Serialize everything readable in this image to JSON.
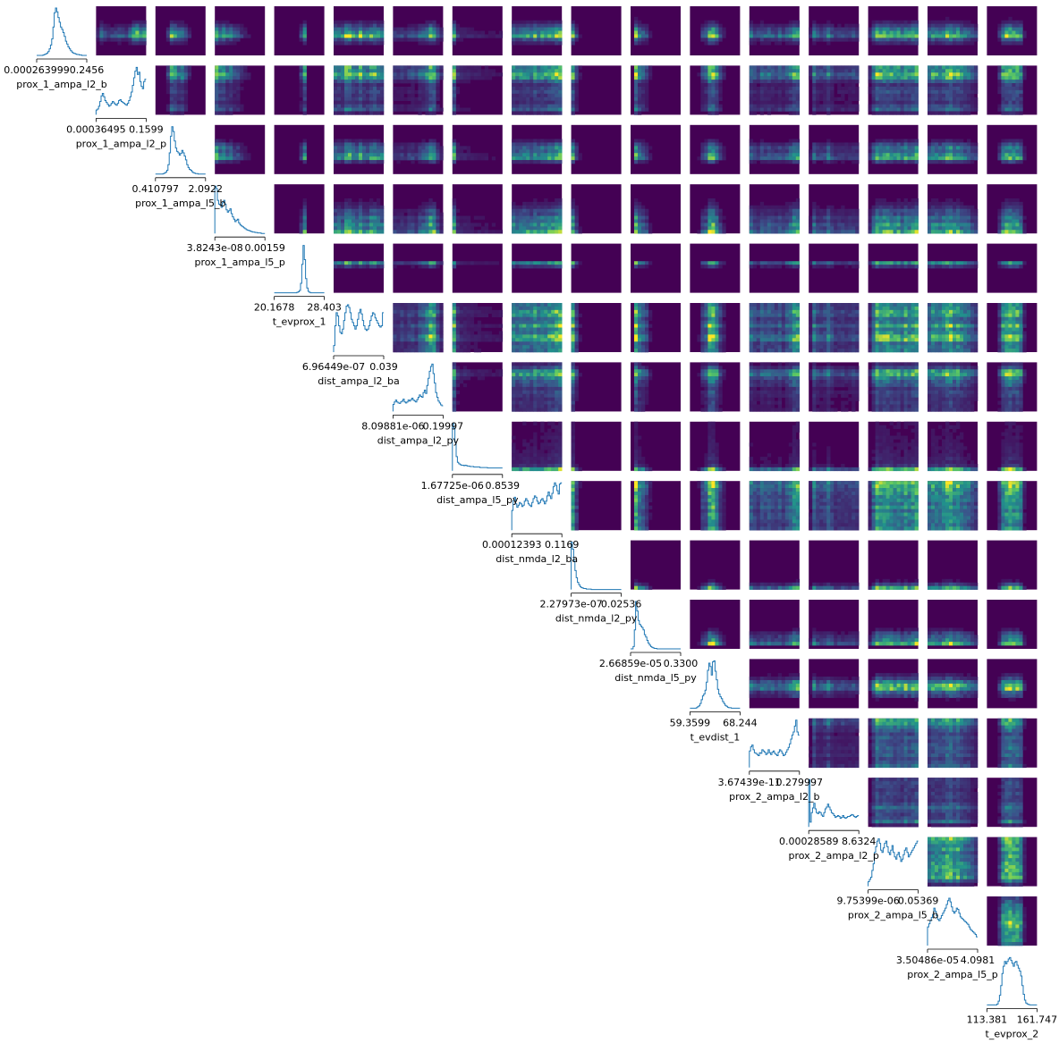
{
  "chart_data": {
    "type": "pairplot",
    "description_kind": "corner pairplot: 1D histograms on the diagonal, 2D density heatmaps above the diagonal",
    "colors": {
      "histogram_line": "#1f77b4",
      "heatmap_low": "#440154",
      "heatmap_mid": "#21918c",
      "heatmap_high": "#fde725",
      "axis": "#000000",
      "background": "#ffffff"
    },
    "variables": [
      {
        "name": "prox_1_ampa_l2_b",
        "tick_min": "0.000263999",
        "tick_max": "0.2456"
      },
      {
        "name": "prox_1_ampa_l2_p",
        "tick_min": "0.00036495",
        "tick_max": "0.1599"
      },
      {
        "name": "prox_1_ampa_l5_b",
        "tick_min": "0.410797",
        "tick_max": "2.0922"
      },
      {
        "name": "prox_1_ampa_l5_p",
        "tick_min": "3.8243e-08",
        "tick_max": "0.00159"
      },
      {
        "name": "t_evprox_1",
        "tick_min": "20.1678",
        "tick_max": "28.403"
      },
      {
        "name": "dist_ampa_l2_ba",
        "tick_min": "6.96449e-07",
        "tick_max": "0.039"
      },
      {
        "name": "dist_ampa_l2_py",
        "tick_min": "8.09881e-06",
        "tick_max": "0.19997"
      },
      {
        "name": "dist_ampa_l5_py",
        "tick_min": "1.67725e-06",
        "tick_max": "0.8539"
      },
      {
        "name": "dist_nmda_l2_ba",
        "tick_min": "0.00012393",
        "tick_max": "0.1169"
      },
      {
        "name": "dist_nmda_l2_py",
        "tick_min": "2.27973e-07",
        "tick_max": "0.02536"
      },
      {
        "name": "dist_nmda_l5_py",
        "tick_min": "2.66859e-05",
        "tick_max": "0.3300"
      },
      {
        "name": "t_evdist_1",
        "tick_min": "59.3599",
        "tick_max": "68.244"
      },
      {
        "name": "prox_2_ampa_l2_b",
        "tick_min": "3.67439e-11",
        "tick_max": "0.279997"
      },
      {
        "name": "prox_2_ampa_l2_p",
        "tick_min": "0.00028589",
        "tick_max": "8.6324"
      },
      {
        "name": "prox_2_ampa_l5_b",
        "tick_min": "9.75399e-06",
        "tick_max": "0.05369"
      },
      {
        "name": "prox_2_ampa_l5_p",
        "tick_min": "3.50486e-05",
        "tick_max": "4.0981"
      },
      {
        "name": "t_evprox_2",
        "tick_min": "113.381",
        "tick_max": "161.747"
      }
    ],
    "histograms": [
      [
        0,
        0,
        0,
        0,
        0,
        1,
        2,
        3,
        5,
        8,
        14,
        22,
        35,
        60,
        90,
        100,
        92,
        80,
        70,
        60,
        55,
        48,
        40,
        30,
        24,
        18,
        14,
        10,
        7,
        5,
        4,
        3,
        2,
        2,
        1,
        1,
        0,
        0,
        0,
        0
      ],
      [
        10,
        12,
        18,
        28,
        40,
        45,
        38,
        30,
        26,
        22,
        18,
        20,
        24,
        28,
        25,
        22,
        20,
        24,
        30,
        32,
        28,
        26,
        24,
        22,
        20,
        24,
        30,
        38,
        48,
        62,
        78,
        92,
        100,
        85,
        90,
        70,
        60,
        55,
        70,
        75
      ],
      [
        0,
        0,
        0,
        0,
        0,
        0,
        1,
        2,
        4,
        8,
        20,
        45,
        80,
        100,
        90,
        70,
        55,
        48,
        45,
        40,
        44,
        50,
        45,
        38,
        30,
        20,
        14,
        10,
        8,
        5,
        3,
        2,
        1,
        1,
        0,
        0,
        0,
        0,
        0,
        0
      ],
      [
        100,
        95,
        70,
        62,
        60,
        55,
        65,
        70,
        62,
        50,
        45,
        48,
        52,
        42,
        35,
        30,
        25,
        28,
        30,
        22,
        18,
        16,
        14,
        12,
        10,
        8,
        7,
        6,
        5,
        4,
        3,
        3,
        2,
        2,
        1,
        1,
        1,
        0,
        0,
        0
      ],
      [
        0,
        0,
        0,
        0,
        0,
        0,
        0,
        0,
        0,
        0,
        0,
        0,
        0,
        0,
        0,
        0,
        0,
        0,
        1,
        2,
        5,
        20,
        60,
        100,
        70,
        30,
        10,
        3,
        1,
        0,
        0,
        0,
        0,
        0,
        0,
        0,
        0,
        0,
        0,
        0
      ],
      [
        10,
        40,
        60,
        55,
        40,
        30,
        28,
        35,
        48,
        60,
        70,
        72,
        68,
        60,
        50,
        45,
        40,
        35,
        40,
        50,
        60,
        65,
        58,
        48,
        40,
        35,
        33,
        35,
        40,
        48,
        55,
        60,
        58,
        52,
        48,
        44,
        40,
        38,
        40,
        60
      ],
      [
        15,
        20,
        24,
        20,
        18,
        17,
        20,
        22,
        26,
        20,
        18,
        20,
        24,
        22,
        25,
        28,
        24,
        22,
        20,
        25,
        30,
        35,
        32,
        30,
        40,
        45,
        38,
        55,
        70,
        85,
        95,
        100,
        80,
        60,
        40,
        30,
        22,
        18,
        14,
        12
      ],
      [
        100,
        90,
        60,
        30,
        18,
        15,
        13,
        12,
        12,
        11,
        12,
        11,
        10,
        10,
        9,
        9,
        9,
        8,
        8,
        8,
        8,
        8,
        7,
        7,
        7,
        7,
        7,
        7,
        6,
        6,
        6,
        6,
        6,
        6,
        6,
        6,
        6,
        6,
        6,
        6
      ],
      [
        30,
        45,
        50,
        40,
        35,
        38,
        42,
        40,
        36,
        38,
        44,
        48,
        45,
        40,
        38,
        36,
        42,
        48,
        52,
        50,
        44,
        40,
        42,
        46,
        48,
        44,
        40,
        44,
        52,
        58,
        52,
        48,
        56,
        66,
        72,
        68,
        60,
        55,
        70,
        72
      ],
      [
        100,
        85,
        60,
        40,
        25,
        15,
        10,
        6,
        4,
        3,
        2,
        2,
        1,
        1,
        1,
        1,
        0,
        0,
        0,
        0,
        0,
        0,
        0,
        0,
        0,
        0,
        0,
        0,
        0,
        0,
        0,
        0,
        0,
        0,
        0,
        0,
        0,
        0,
        0,
        0
      ],
      [
        0,
        0,
        5,
        40,
        100,
        80,
        60,
        52,
        48,
        45,
        40,
        30,
        25,
        18,
        12,
        8,
        5,
        3,
        2,
        1,
        1,
        0,
        0,
        0,
        0,
        0,
        0,
        0,
        0,
        0,
        0,
        0,
        0,
        0,
        0,
        0,
        0,
        0,
        0,
        0
      ],
      [
        0,
        0,
        0,
        0,
        0,
        1,
        3,
        5,
        10,
        18,
        26,
        30,
        38,
        55,
        80,
        95,
        88,
        70,
        98,
        100,
        78,
        60,
        40,
        30,
        24,
        20,
        14,
        10,
        6,
        4,
        2,
        1,
        1,
        0,
        0,
        0,
        0,
        0,
        0,
        0
      ],
      [
        28,
        35,
        38,
        30,
        25,
        24,
        22,
        20,
        25,
        24,
        30,
        28,
        26,
        22,
        24,
        30,
        25,
        22,
        26,
        28,
        24,
        22,
        20,
        26,
        30,
        28,
        24,
        20,
        22,
        26,
        30,
        34,
        40,
        48,
        55,
        60,
        70,
        80,
        60,
        55
      ],
      [
        100,
        10,
        30,
        40,
        50,
        38,
        30,
        28,
        32,
        30,
        25,
        22,
        30,
        38,
        42,
        48,
        42,
        36,
        30,
        28,
        24,
        20,
        22,
        24,
        22,
        18,
        20,
        24,
        20,
        18,
        20,
        22,
        22,
        24,
        26,
        25,
        22,
        20,
        22,
        24
      ],
      [
        4,
        6,
        8,
        14,
        20,
        30,
        35,
        40,
        42,
        38,
        32,
        30,
        34,
        38,
        40,
        35,
        30,
        28,
        32,
        36,
        30,
        26,
        24,
        28,
        30,
        26,
        22,
        24,
        28,
        32,
        34,
        30,
        26,
        28,
        30,
        32,
        34,
        36,
        38,
        40
      ],
      [
        30,
        35,
        40,
        45,
        50,
        60,
        55,
        48,
        42,
        40,
        44,
        48,
        52,
        56,
        60,
        66,
        72,
        76,
        70,
        62,
        55,
        52,
        55,
        60,
        58,
        52,
        46,
        44,
        42,
        40,
        38,
        36,
        34,
        30,
        26,
        24,
        22,
        20,
        18,
        14
      ],
      [
        0,
        0,
        0,
        0,
        0,
        0,
        0,
        0,
        2,
        8,
        20,
        40,
        65,
        80,
        90,
        85,
        90,
        95,
        98,
        92,
        86,
        80,
        88,
        90,
        82,
        76,
        70,
        60,
        40,
        22,
        10,
        4,
        2,
        1,
        0,
        0,
        0,
        0,
        0,
        0
      ]
    ],
    "heatmap_colormap": "viridis",
    "heatmap_scale": "density (no numeric axis shown)"
  }
}
